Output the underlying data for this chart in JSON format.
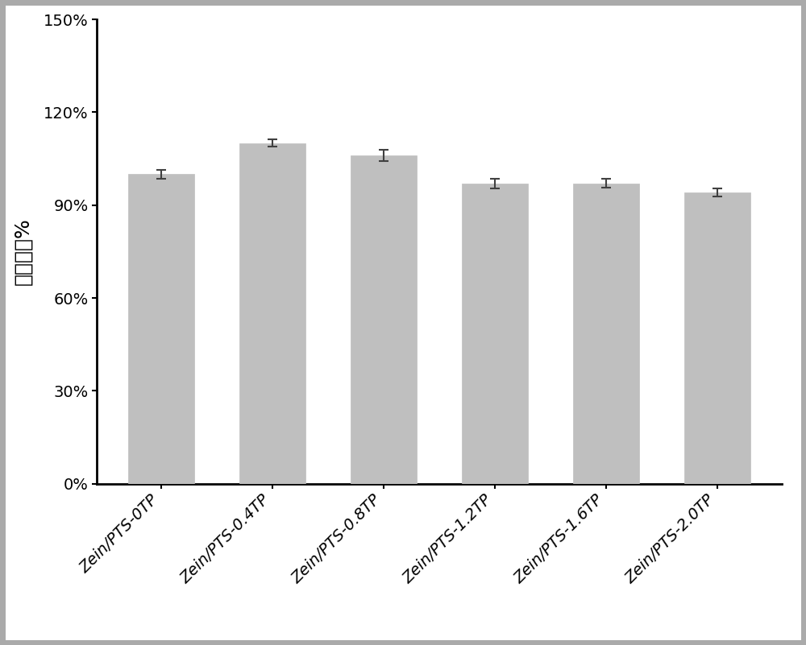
{
  "categories": [
    "Zein/PTS-0TP",
    "Zein/PTS-0.4TP",
    "Zein/PTS-0.8TP",
    "Zein/PTS-1.2TP",
    "Zein/PTS-1.6TP",
    "Zein/PTS-2.0TP"
  ],
  "values": [
    1.0,
    1.1,
    1.06,
    0.97,
    0.97,
    0.94
  ],
  "errors": [
    0.015,
    0.012,
    0.018,
    0.016,
    0.014,
    0.013
  ],
  "bar_color": "#BFBFBF",
  "bar_edgecolor": "#BFBFBF",
  "error_color": "#404040",
  "ylabel": "细胞活性%",
  "ylabel_fontsize": 18,
  "tick_fontsize": 14,
  "xlabel_rotation": 45,
  "ylim": [
    0,
    1.5
  ],
  "yticks": [
    0.0,
    0.3,
    0.6,
    0.9,
    1.2,
    1.5
  ],
  "ytick_labels": [
    "0%",
    "30%",
    "60%",
    "90%",
    "120%",
    "150%"
  ],
  "bar_width": 0.6,
  "figure_bg": "#ffffff",
  "outer_bg": "#d0d0d0",
  "axes_bg": "#ffffff",
  "capsize": 4,
  "elinewidth": 1.5,
  "capthick": 1.5,
  "spine_linewidth": 2.0,
  "border_color": "#aaaaaa"
}
